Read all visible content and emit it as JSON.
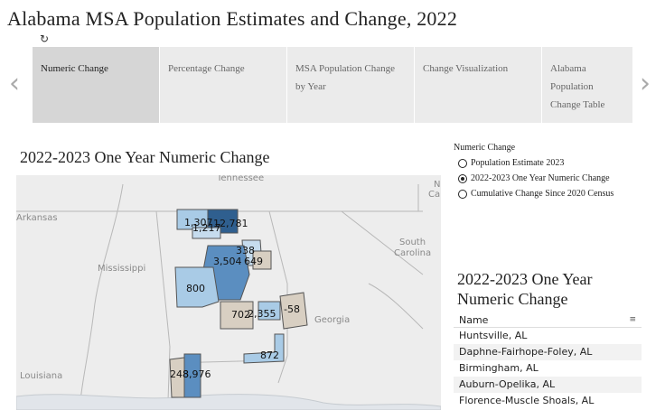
{
  "title": "Alabama MSA Population Estimates and Change, 2022",
  "reload_icon": "↻",
  "nav": {
    "prev_icon": "‹",
    "next_icon": "›"
  },
  "tabs": [
    {
      "label": "Numeric Change",
      "active": true
    },
    {
      "label": "Percentage Change",
      "active": false
    },
    {
      "label": "MSA Population Change by Year",
      "active": false
    },
    {
      "label": "Change Visualization",
      "active": false
    },
    {
      "label": "Alabama Population Change Table",
      "active": false
    }
  ],
  "map": {
    "title": "2022-2023 One Year Numeric Change",
    "place_labels": {
      "tennessee": "Tennessee",
      "arkansas": "Arkansas",
      "mississippi": "Mississippi",
      "south_carolina_1": "South",
      "south_carolina_2": "Carolina",
      "georgia": "Georgia",
      "louisiana": "Louisiana",
      "n": "N",
      "ca": "Ca"
    },
    "msa_values": {
      "florence": "1,307",
      "decatur": "1,217",
      "huntsville": "12,781",
      "gadsden": "338",
      "birmingham": "3,504",
      "anniston": "649",
      "tuscaloosa": "800",
      "montgomery": "702",
      "auburn": "2,355",
      "columbus": "-58",
      "dothan": "872",
      "mobile": "248",
      "daphne": "8,976"
    },
    "colors": {
      "dark_blue": "#2f5f8f",
      "mid_blue": "#5b8ec0",
      "light_blue": "#a9cbe6",
      "pale_blue": "#c6dcee",
      "negative": "#d8cfc2"
    }
  },
  "radio_group": {
    "label": "Numeric Change",
    "options": [
      {
        "label": "Population Estimate 2023",
        "selected": false
      },
      {
        "label": "2022-2023 One Year Numeric Change",
        "selected": true
      },
      {
        "label": "Cumulative Change Since 2020 Census",
        "selected": false
      }
    ]
  },
  "table": {
    "title_line1": "2022-2023 One Year",
    "title_line2": "Numeric Change",
    "column": "Name",
    "filter_icon": "≡",
    "rows": [
      "Huntsville, AL",
      "Daphne-Fairhope-Foley, AL",
      "Birmingham, AL",
      "Auburn-Opelika, AL",
      "Florence-Muscle Shoals, AL"
    ]
  }
}
